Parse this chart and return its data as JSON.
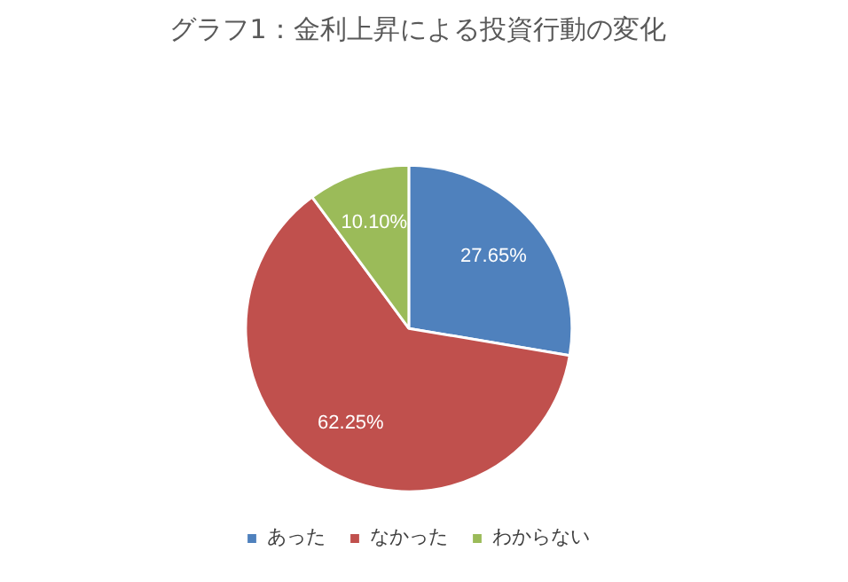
{
  "chart_data": {
    "type": "pie",
    "title": "グラフ1：金利上昇による投資行動の変化",
    "categories": [
      "あった",
      "なかった",
      "わからない"
    ],
    "values": [
      27.65,
      62.25,
      10.1
    ],
    "colors": [
      "#4f81bd",
      "#c0504d",
      "#9bbb59"
    ],
    "value_labels": [
      "27.65%",
      "62.25%",
      "10.10%"
    ],
    "legend": "bottom"
  }
}
